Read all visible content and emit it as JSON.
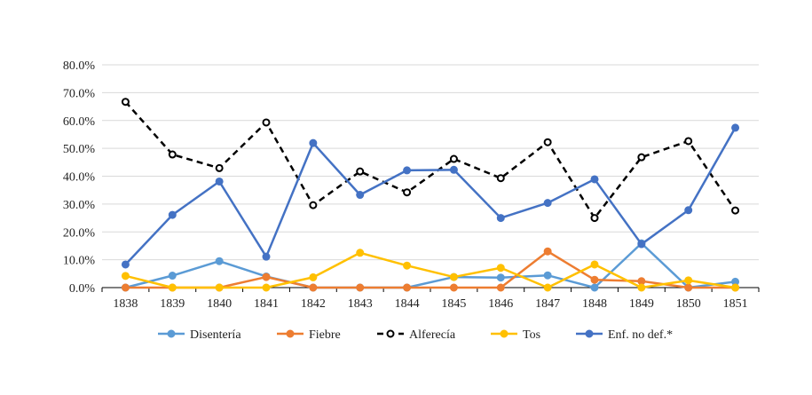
{
  "chart_data": {
    "type": "line",
    "title": "",
    "xlabel": "",
    "ylabel": "",
    "ylim": [
      0,
      80
    ],
    "y_ticks": [
      "0.0%",
      "10.0%",
      "20.0%",
      "30.0%",
      "40.0%",
      "50.0%",
      "60.0%",
      "70.0%",
      "80.0%"
    ],
    "grid": true,
    "legend_position": "bottom",
    "categories": [
      "1838",
      "1839",
      "1840",
      "1841",
      "1842",
      "1843",
      "1844",
      "1845",
      "1846",
      "1847",
      "1848",
      "1849",
      "1850",
      "1851"
    ],
    "series": [
      {
        "name": "Disentería",
        "color": "#5b9bd5",
        "dash": "solid",
        "marker": "filled",
        "values": [
          0.0,
          4.3,
          9.5,
          4.0,
          0.0,
          0.0,
          0.0,
          3.8,
          3.6,
          4.4,
          0.0,
          15.9,
          0.0,
          2.1
        ]
      },
      {
        "name": "Fiebre",
        "color": "#ed7d31",
        "dash": "solid",
        "marker": "filled",
        "values": [
          0.0,
          0.0,
          0.0,
          3.8,
          0.0,
          0.0,
          0.0,
          0.0,
          0.0,
          13.0,
          2.8,
          2.3,
          0.0,
          0.0
        ]
      },
      {
        "name": "Alferecía",
        "color": "#000000",
        "dash": "dashed",
        "marker": "hollow",
        "values": [
          66.7,
          47.8,
          42.9,
          59.3,
          29.6,
          41.7,
          34.2,
          46.2,
          39.3,
          52.2,
          25.0,
          46.8,
          52.6,
          27.7
        ]
      },
      {
        "name": "Tos",
        "color": "#ffc000",
        "dash": "solid",
        "marker": "filled",
        "values": [
          4.2,
          0.0,
          0.0,
          0.0,
          3.7,
          12.5,
          7.9,
          3.8,
          7.1,
          0.0,
          8.3,
          0.0,
          2.6,
          0.0
        ]
      },
      {
        "name": "Enf. no def.*",
        "color": "#4472c4",
        "dash": "solid",
        "marker": "filled",
        "values": [
          8.3,
          26.1,
          38.1,
          11.1,
          51.9,
          33.3,
          42.1,
          42.3,
          25.0,
          30.4,
          38.9,
          15.6,
          27.8,
          57.4
        ]
      }
    ]
  }
}
